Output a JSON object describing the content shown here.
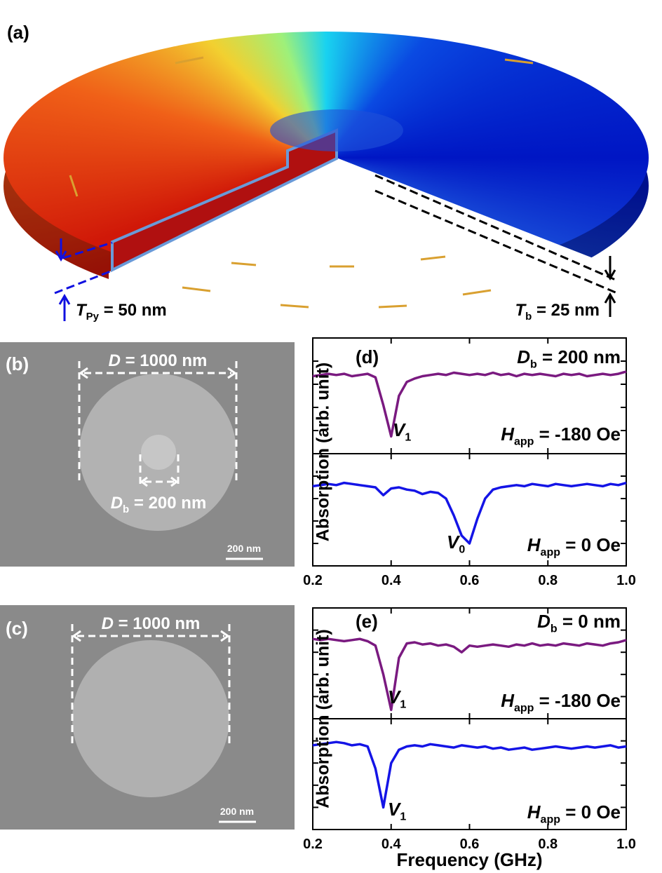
{
  "figure": {
    "panel_a": {
      "label": "(a)",
      "thickness": {
        "text": "T",
        "sub": "Py",
        "tail": " = 50 nm"
      },
      "barrier": {
        "text": "T",
        "sub": "b",
        "tail": " = 25 nm"
      }
    },
    "panel_b": {
      "label": "(b)",
      "diameter": {
        "text": "D",
        "tail": " = 1000 nm"
      },
      "bump": {
        "text": "D",
        "sub": "b",
        "tail": " = 200 nm"
      },
      "scale": "200 nm"
    },
    "panel_c": {
      "label": "(c)",
      "diameter": {
        "text": "D",
        "tail": " = 1000 nm"
      },
      "scale": "200 nm"
    }
  },
  "chart_data": [
    {
      "type": "line",
      "panel_label": "(d)",
      "annotation": {
        "text": "D",
        "sub": "b",
        "tail": " = 200 nm"
      },
      "ylabel": "Absorption (arb. unit)",
      "x": [
        0.2,
        0.22,
        0.24,
        0.26,
        0.28,
        0.3,
        0.32,
        0.34,
        0.36,
        0.38,
        0.4,
        0.42,
        0.44,
        0.46,
        0.48,
        0.5,
        0.52,
        0.54,
        0.56,
        0.58,
        0.6,
        0.62,
        0.64,
        0.66,
        0.68,
        0.7,
        0.72,
        0.74,
        0.76,
        0.78,
        0.8,
        0.82,
        0.84,
        0.86,
        0.88,
        0.9,
        0.92,
        0.94,
        0.96,
        0.98,
        1.0
      ],
      "xlim": [
        0.2,
        1.0
      ],
      "xticks": [
        0.2,
        0.4,
        0.6,
        0.8,
        {
          "value": 1,
          "label": "1.0"
        }
      ],
      "subplots": [
        {
          "ylim": [
            0,
            1
          ],
          "yticks": [
            0.2,
            0.4,
            0.6,
            0.8
          ],
          "annotations": [
            {
              "text": "V",
              "sub": "1"
            },
            {
              "text": "H",
              "sub": "app",
              "tail": " = -180 Oe"
            }
          ],
          "series": [
            {
              "color": "#7a1a80",
              "values": [
                0.67,
                0.68,
                0.69,
                0.68,
                0.69,
                0.67,
                0.68,
                0.69,
                0.66,
                0.42,
                0.15,
                0.5,
                0.62,
                0.65,
                0.67,
                0.68,
                0.69,
                0.68,
                0.7,
                0.69,
                0.68,
                0.69,
                0.68,
                0.7,
                0.68,
                0.69,
                0.67,
                0.69,
                0.68,
                0.69,
                0.68,
                0.67,
                0.69,
                0.68,
                0.69,
                0.67,
                0.68,
                0.69,
                0.68,
                0.69,
                0.71
              ]
            }
          ]
        },
        {
          "ylim": [
            0,
            1
          ],
          "yticks": [
            0.2,
            0.4,
            0.6,
            0.8
          ],
          "annotations": [
            {
              "text": "V",
              "sub": "0"
            },
            {
              "text": "H",
              "sub": "app",
              "tail": " = 0 Oe"
            }
          ],
          "series": [
            {
              "color": "#1414e6",
              "values": [
                0.71,
                0.72,
                0.73,
                0.72,
                0.74,
                0.73,
                0.72,
                0.71,
                0.7,
                0.63,
                0.69,
                0.7,
                0.68,
                0.67,
                0.64,
                0.66,
                0.65,
                0.6,
                0.45,
                0.27,
                0.2,
                0.42,
                0.6,
                0.68,
                0.7,
                0.71,
                0.72,
                0.71,
                0.73,
                0.72,
                0.71,
                0.73,
                0.72,
                0.71,
                0.72,
                0.73,
                0.72,
                0.71,
                0.73,
                0.72,
                0.74
              ]
            }
          ]
        }
      ]
    },
    {
      "type": "line",
      "panel_label": "(e)",
      "annotation": {
        "text": "D",
        "sub": "b",
        "tail": " = 0 nm"
      },
      "ylabel": "Absorption (arb. unit)",
      "xlabel": "Frequency (GHz)",
      "x": [
        0.2,
        0.22,
        0.24,
        0.26,
        0.28,
        0.3,
        0.32,
        0.34,
        0.36,
        0.38,
        0.4,
        0.42,
        0.44,
        0.46,
        0.48,
        0.5,
        0.52,
        0.54,
        0.56,
        0.58,
        0.6,
        0.62,
        0.64,
        0.66,
        0.68,
        0.7,
        0.72,
        0.74,
        0.76,
        0.78,
        0.8,
        0.82,
        0.84,
        0.86,
        0.88,
        0.9,
        0.92,
        0.94,
        0.96,
        0.98,
        1.0
      ],
      "xlim": [
        0.2,
        1.0
      ],
      "xticks": [
        0.2,
        0.4,
        0.6,
        0.8,
        {
          "value": 1,
          "label": "1.0"
        }
      ],
      "subplots": [
        {
          "ylim": [
            0,
            1
          ],
          "yticks": [
            0.2,
            0.4,
            0.6,
            0.8
          ],
          "annotations": [
            {
              "text": "V",
              "sub": "1"
            },
            {
              "text": "H",
              "sub": "app",
              "tail": " = -180 Oe"
            }
          ],
          "series": [
            {
              "color": "#7a1a80",
              "values": [
                0.72,
                0.71,
                0.72,
                0.71,
                0.7,
                0.71,
                0.72,
                0.7,
                0.66,
                0.4,
                0.08,
                0.55,
                0.68,
                0.69,
                0.67,
                0.68,
                0.66,
                0.67,
                0.65,
                0.6,
                0.66,
                0.65,
                0.66,
                0.67,
                0.66,
                0.65,
                0.67,
                0.66,
                0.68,
                0.66,
                0.67,
                0.66,
                0.68,
                0.67,
                0.66,
                0.68,
                0.67,
                0.66,
                0.68,
                0.69,
                0.71
              ]
            }
          ]
        },
        {
          "ylim": [
            0,
            1
          ],
          "yticks": [
            0.2,
            0.4,
            0.6,
            0.8
          ],
          "annotations": [
            {
              "text": "V",
              "sub": "1"
            },
            {
              "text": "H",
              "sub": "app",
              "tail": " = 0 Oe"
            }
          ],
          "series": [
            {
              "color": "#1414e6",
              "values": [
                0.76,
                0.77,
                0.78,
                0.79,
                0.78,
                0.76,
                0.77,
                0.75,
                0.55,
                0.2,
                0.6,
                0.72,
                0.75,
                0.76,
                0.75,
                0.77,
                0.76,
                0.75,
                0.74,
                0.76,
                0.75,
                0.74,
                0.75,
                0.73,
                0.74,
                0.72,
                0.73,
                0.74,
                0.72,
                0.73,
                0.74,
                0.75,
                0.74,
                0.73,
                0.74,
                0.75,
                0.74,
                0.75,
                0.76,
                0.74,
                0.75
              ]
            }
          ]
        }
      ]
    }
  ]
}
